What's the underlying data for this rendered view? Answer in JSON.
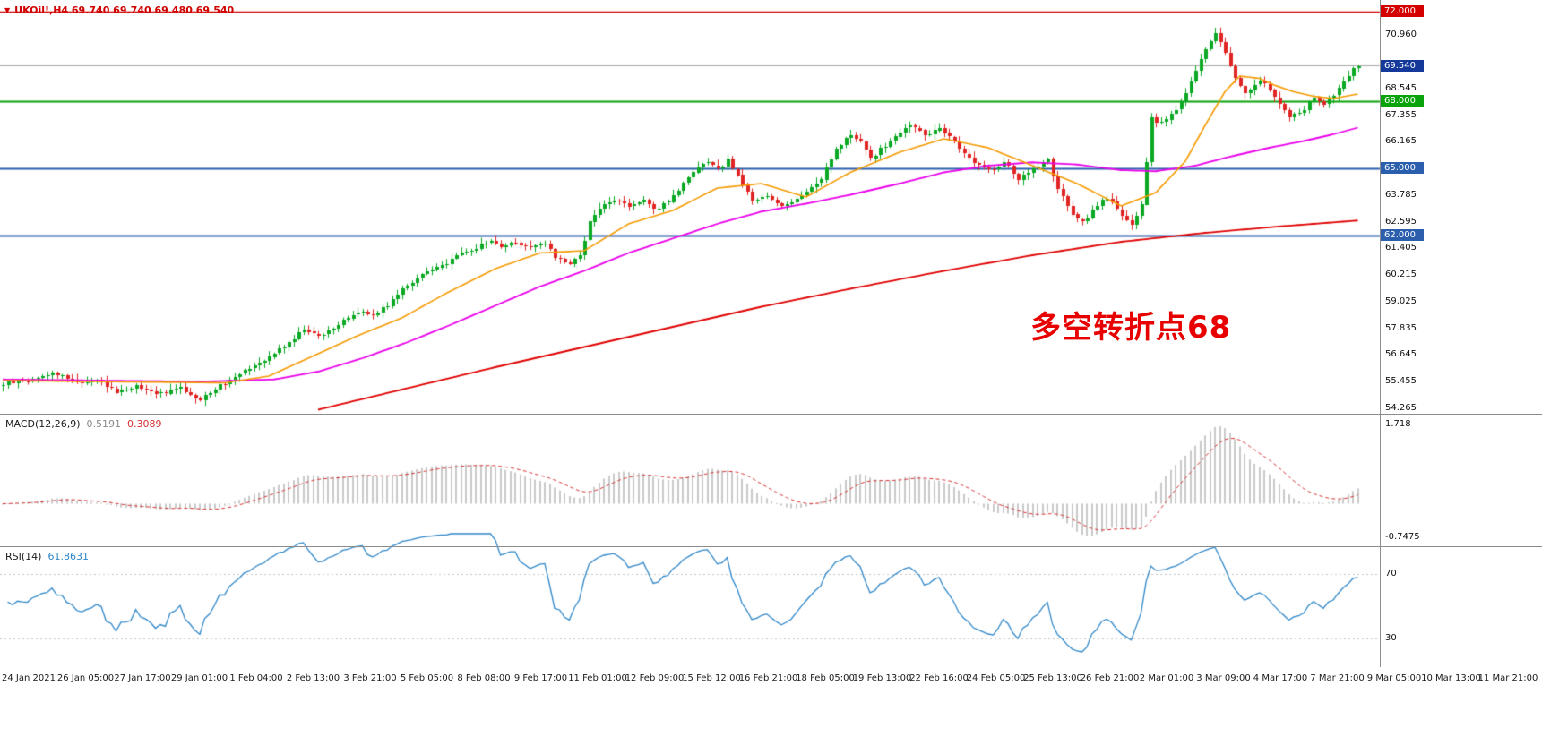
{
  "window": {
    "title": "UKOil H4 chart",
    "background": "#ffffff"
  },
  "symbol_bar": {
    "marker": "▼",
    "text": "UKOil!,H4 69.740 69.740 69.480 69.540",
    "color": "#d10000"
  },
  "annotation": {
    "text": "多空转折点68",
    "color": "#e80000"
  },
  "macd_panel": {
    "label": "MACD(12,26,9)",
    "main_value": "0.5191",
    "signal_value": "0.3089",
    "scale_max": "1.718",
    "scale_min": "-0.7475"
  },
  "rsi_panel": {
    "label": "RSI(14)",
    "value": "61.8631",
    "level_top": "70",
    "level_bottom": "30"
  },
  "chart_data": {
    "type": "candlestick",
    "symbol": "UKOil!",
    "timeframe": "H4",
    "current_bar": {
      "open": 69.74,
      "high": 69.74,
      "low": 69.48,
      "close": 69.54
    },
    "y_axis": {
      "ticks": [
        "70.960",
        "68.545",
        "67.355",
        "66.165",
        "63.785",
        "62.595",
        "61.405",
        "60.215",
        "59.025",
        "57.835",
        "56.645",
        "55.455",
        "54.265"
      ],
      "range": [
        54.0,
        72.5
      ]
    },
    "price_badges": [
      {
        "label": "72.000",
        "price": 72.0,
        "color": "#d40000"
      },
      {
        "label": "69.540",
        "price": 69.54,
        "color": "#15399b"
      },
      {
        "label": "68.000",
        "price": 68.0,
        "color": "#0ba30b"
      },
      {
        "label": "65.000",
        "price": 65.0,
        "color": "#2b5fae"
      },
      {
        "label": "62.000",
        "price": 62.0,
        "color": "#2b5fae"
      }
    ],
    "price_levels": [
      {
        "price": 72.0,
        "color": "#d40000",
        "width": 1.5
      },
      {
        "price": 69.6,
        "color": "#a9a9a9",
        "width": 1
      },
      {
        "price": 68.0,
        "color": "#0ba30b",
        "width": 2
      },
      {
        "price": 65.0,
        "color": "#2b5fae",
        "width": 2
      },
      {
        "price": 62.0,
        "color": "#2b5fae",
        "width": 2
      }
    ],
    "x_labels": [
      "24 Jan 2021",
      "26 Jan 05:00",
      "27 Jan 17:00",
      "29 Jan 01:00",
      "1 Feb 04:00",
      "2 Feb 13:00",
      "3 Feb 21:00",
      "5 Feb 05:00",
      "8 Feb 08:00",
      "9 Feb 17:00",
      "11 Feb 01:00",
      "12 Feb 09:00",
      "15 Feb 12:00",
      "16 Feb 21:00",
      "18 Feb 05:00",
      "19 Feb 13:00",
      "22 Feb 16:00",
      "24 Feb 05:00",
      "25 Feb 13:00",
      "26 Feb 21:00",
      "2 Mar 01:00",
      "3 Mar 09:00",
      "4 Mar 17:00",
      "7 Mar 21:00",
      "9 Mar 05:00",
      "10 Mar 13:00",
      "11 Mar 21:00"
    ],
    "candle_count": 276,
    "close_anchors": [
      [
        0,
        55.35
      ],
      [
        5,
        55.5
      ],
      [
        10,
        55.85
      ],
      [
        16,
        55.4
      ],
      [
        19,
        55.55
      ],
      [
        23,
        55.0
      ],
      [
        27,
        55.25
      ],
      [
        31,
        54.9
      ],
      [
        36,
        55.15
      ],
      [
        40,
        54.65
      ],
      [
        42,
        55.0
      ],
      [
        45,
        55.4
      ],
      [
        49,
        56.0
      ],
      [
        54,
        56.55
      ],
      [
        58,
        57.2
      ],
      [
        61,
        57.8
      ],
      [
        65,
        57.5
      ],
      [
        69,
        58.15
      ],
      [
        72,
        58.6
      ],
      [
        75,
        58.45
      ],
      [
        78,
        58.9
      ],
      [
        81,
        59.6
      ],
      [
        85,
        60.25
      ],
      [
        89,
        60.6
      ],
      [
        92,
        61.1
      ],
      [
        96,
        61.45
      ],
      [
        99,
        61.75
      ],
      [
        101,
        61.5
      ],
      [
        104,
        61.7
      ],
      [
        107,
        61.45
      ],
      [
        110,
        61.6
      ],
      [
        112,
        61.0
      ],
      [
        115,
        60.75
      ],
      [
        117,
        61.05
      ],
      [
        119,
        62.55
      ],
      [
        121,
        63.25
      ],
      [
        124,
        63.55
      ],
      [
        127,
        63.35
      ],
      [
        130,
        63.5
      ],
      [
        132,
        63.1
      ],
      [
        135,
        63.55
      ],
      [
        138,
        64.25
      ],
      [
        141,
        65.0
      ],
      [
        143,
        65.25
      ],
      [
        145,
        64.9
      ],
      [
        147,
        65.35
      ],
      [
        150,
        64.3
      ],
      [
        152,
        63.5
      ],
      [
        155,
        63.75
      ],
      [
        158,
        63.3
      ],
      [
        161,
        63.6
      ],
      [
        163,
        63.95
      ],
      [
        166,
        64.55
      ],
      [
        169,
        65.8
      ],
      [
        172,
        66.5
      ],
      [
        174,
        66.15
      ],
      [
        176,
        65.45
      ],
      [
        179,
        66.0
      ],
      [
        182,
        66.6
      ],
      [
        184,
        66.9
      ],
      [
        187,
        66.5
      ],
      [
        190,
        66.75
      ],
      [
        193,
        66.2
      ],
      [
        195,
        65.6
      ],
      [
        198,
        65.15
      ],
      [
        201,
        64.9
      ],
      [
        203,
        65.3
      ],
      [
        206,
        64.5
      ],
      [
        209,
        64.9
      ],
      [
        212,
        65.35
      ],
      [
        214,
        64.0
      ],
      [
        217,
        63.0
      ],
      [
        219,
        62.55
      ],
      [
        222,
        63.35
      ],
      [
        224,
        63.7
      ],
      [
        227,
        62.9
      ],
      [
        229,
        62.5
      ],
      [
        231,
        63.3
      ],
      [
        233,
        67.2
      ],
      [
        235,
        67.0
      ],
      [
        238,
        67.6
      ],
      [
        240,
        68.4
      ],
      [
        242,
        69.3
      ],
      [
        244,
        70.3
      ],
      [
        246,
        71.0
      ],
      [
        248,
        70.2
      ],
      [
        250,
        69.0
      ],
      [
        252,
        68.3
      ],
      [
        255,
        68.9
      ],
      [
        257,
        68.5
      ],
      [
        259,
        67.8
      ],
      [
        261,
        67.3
      ],
      [
        264,
        67.6
      ],
      [
        266,
        68.2
      ],
      [
        268,
        67.9
      ],
      [
        270,
        68.3
      ],
      [
        272,
        68.9
      ],
      [
        274,
        69.4
      ],
      [
        275,
        69.54
      ]
    ],
    "ma_fast": {
      "name": "fast moving average",
      "color": "#f59a00",
      "anchors": [
        [
          0,
          55.5
        ],
        [
          45,
          55.4
        ],
        [
          54,
          55.7
        ],
        [
          63,
          56.6
        ],
        [
          72,
          57.5
        ],
        [
          81,
          58.3
        ],
        [
          90,
          59.4
        ],
        [
          100,
          60.5
        ],
        [
          109,
          61.2
        ],
        [
          118,
          61.3
        ],
        [
          127,
          62.5
        ],
        [
          136,
          63.1
        ],
        [
          145,
          64.1
        ],
        [
          154,
          64.3
        ],
        [
          163,
          63.7
        ],
        [
          172,
          64.8
        ],
        [
          182,
          65.7
        ],
        [
          191,
          66.3
        ],
        [
          200,
          65.9
        ],
        [
          209,
          65.1
        ],
        [
          218,
          64.3
        ],
        [
          227,
          63.3
        ],
        [
          234,
          63.9
        ],
        [
          240,
          65.3
        ],
        [
          244,
          66.9
        ],
        [
          248,
          68.4
        ],
        [
          251,
          69.1
        ],
        [
          255,
          69.0
        ],
        [
          258,
          68.7
        ],
        [
          262,
          68.4
        ],
        [
          266,
          68.2
        ],
        [
          270,
          68.1
        ],
        [
          275,
          68.3
        ]
      ]
    },
    "ma_mid": {
      "name": "medium moving average",
      "color": "#ea00ea",
      "anchors": [
        [
          0,
          55.55
        ],
        [
          40,
          55.45
        ],
        [
          55,
          55.55
        ],
        [
          64,
          55.9
        ],
        [
          73,
          56.5
        ],
        [
          82,
          57.2
        ],
        [
          91,
          58.0
        ],
        [
          100,
          58.85
        ],
        [
          109,
          59.7
        ],
        [
          118,
          60.4
        ],
        [
          127,
          61.2
        ],
        [
          136,
          61.85
        ],
        [
          145,
          62.5
        ],
        [
          154,
          63.05
        ],
        [
          163,
          63.4
        ],
        [
          172,
          63.8
        ],
        [
          182,
          64.3
        ],
        [
          191,
          64.8
        ],
        [
          200,
          65.1
        ],
        [
          209,
          65.25
        ],
        [
          218,
          65.15
        ],
        [
          227,
          64.9
        ],
        [
          234,
          64.85
        ],
        [
          242,
          65.1
        ],
        [
          249,
          65.5
        ],
        [
          257,
          65.9
        ],
        [
          264,
          66.2
        ],
        [
          270,
          66.5
        ],
        [
          275,
          66.8
        ]
      ]
    },
    "ma_slow": {
      "name": "slow moving average",
      "color": "#e00000",
      "anchors": [
        [
          64,
          54.2
        ],
        [
          81,
          55.1
        ],
        [
          100,
          56.1
        ],
        [
          118,
          57.0
        ],
        [
          136,
          57.9
        ],
        [
          154,
          58.8
        ],
        [
          172,
          59.6
        ],
        [
          191,
          60.4
        ],
        [
          209,
          61.1
        ],
        [
          227,
          61.7
        ],
        [
          244,
          62.1
        ],
        [
          260,
          62.4
        ],
        [
          275,
          62.65
        ]
      ]
    },
    "colors": {
      "up": "#0aa823",
      "down": "#e02424",
      "macd_hist": "#c9c9c9",
      "macd_signal": "#d43333",
      "rsi_line": "#2e86c8"
    },
    "macd": {
      "fast": 12,
      "slow": 26,
      "signal": 9,
      "last_main": 0.5191,
      "last_signal": 0.3089,
      "axis_max": 1.718,
      "axis_min": -0.7475
    },
    "rsi": {
      "period": 14,
      "last": 61.8631,
      "levels": [
        70,
        30
      ]
    }
  }
}
